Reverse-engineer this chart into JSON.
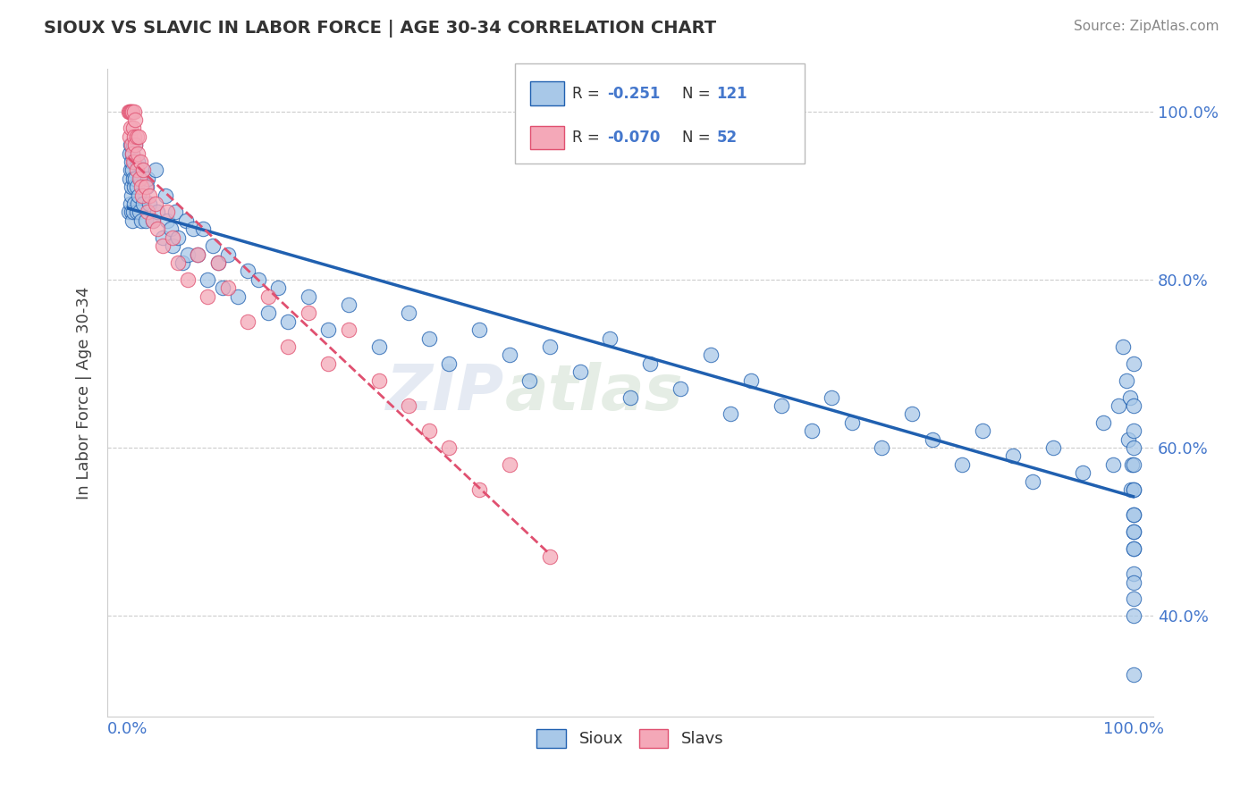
{
  "title": "SIOUX VS SLAVIC IN LABOR FORCE | AGE 30-34 CORRELATION CHART",
  "source": "Source: ZipAtlas.com",
  "ylabel": "In Labor Force | Age 30-34",
  "legend_r_values": [
    "-0.251",
    "-0.070"
  ],
  "legend_n_values": [
    "121",
    "52"
  ],
  "sioux_color": "#A8C8E8",
  "slavs_color": "#F4A8B8",
  "sioux_line_color": "#2060B0",
  "slavs_line_color": "#E05070",
  "background_color": "#FFFFFF",
  "grid_color": "#CCCCCC",
  "title_color": "#333333",
  "axis_label_color": "#444444",
  "tick_color": "#4477CC",
  "sioux_x": [
    0.001,
    0.002,
    0.002,
    0.003,
    0.003,
    0.003,
    0.004,
    0.004,
    0.004,
    0.004,
    0.005,
    0.005,
    0.005,
    0.006,
    0.006,
    0.006,
    0.007,
    0.007,
    0.007,
    0.008,
    0.008,
    0.009,
    0.009,
    0.01,
    0.01,
    0.011,
    0.012,
    0.013,
    0.014,
    0.015,
    0.016,
    0.018,
    0.019,
    0.02,
    0.022,
    0.025,
    0.028,
    0.03,
    0.035,
    0.038,
    0.04,
    0.043,
    0.045,
    0.048,
    0.05,
    0.055,
    0.058,
    0.06,
    0.065,
    0.07,
    0.075,
    0.08,
    0.085,
    0.09,
    0.095,
    0.1,
    0.11,
    0.12,
    0.13,
    0.14,
    0.15,
    0.16,
    0.18,
    0.2,
    0.22,
    0.25,
    0.28,
    0.3,
    0.32,
    0.35,
    0.38,
    0.4,
    0.42,
    0.45,
    0.48,
    0.5,
    0.52,
    0.55,
    0.58,
    0.6,
    0.62,
    0.65,
    0.68,
    0.7,
    0.72,
    0.75,
    0.78,
    0.8,
    0.83,
    0.85,
    0.88,
    0.9,
    0.92,
    0.95,
    0.97,
    0.98,
    0.985,
    0.99,
    0.993,
    0.995,
    0.997,
    0.998,
    0.999,
    1.0,
    1.0,
    1.0,
    1.0,
    1.0,
    1.0,
    1.0,
    1.0,
    1.0,
    1.0,
    1.0,
    1.0,
    1.0,
    1.0,
    1.0,
    1.0,
    1.0,
    1.0
  ],
  "sioux_y": [
    0.88,
    0.92,
    0.95,
    0.89,
    0.93,
    0.96,
    0.9,
    0.94,
    0.88,
    0.91,
    0.95,
    0.87,
    0.93,
    0.92,
    0.96,
    0.88,
    0.91,
    0.94,
    0.89,
    0.92,
    0.96,
    0.88,
    0.91,
    0.89,
    0.94,
    0.9,
    0.88,
    0.92,
    0.87,
    0.93,
    0.89,
    0.87,
    0.91,
    0.92,
    0.89,
    0.87,
    0.93,
    0.88,
    0.85,
    0.9,
    0.87,
    0.86,
    0.84,
    0.88,
    0.85,
    0.82,
    0.87,
    0.83,
    0.86,
    0.83,
    0.86,
    0.8,
    0.84,
    0.82,
    0.79,
    0.83,
    0.78,
    0.81,
    0.8,
    0.76,
    0.79,
    0.75,
    0.78,
    0.74,
    0.77,
    0.72,
    0.76,
    0.73,
    0.7,
    0.74,
    0.71,
    0.68,
    0.72,
    0.69,
    0.73,
    0.66,
    0.7,
    0.67,
    0.71,
    0.64,
    0.68,
    0.65,
    0.62,
    0.66,
    0.63,
    0.6,
    0.64,
    0.61,
    0.58,
    0.62,
    0.59,
    0.56,
    0.6,
    0.57,
    0.63,
    0.58,
    0.65,
    0.72,
    0.68,
    0.61,
    0.66,
    0.55,
    0.58,
    0.62,
    0.7,
    0.65,
    0.5,
    0.55,
    0.6,
    0.48,
    0.52,
    0.58,
    0.45,
    0.5,
    0.55,
    0.42,
    0.48,
    0.52,
    0.4,
    0.44,
    0.33
  ],
  "slavs_x": [
    0.001,
    0.002,
    0.002,
    0.003,
    0.003,
    0.004,
    0.004,
    0.005,
    0.005,
    0.006,
    0.006,
    0.007,
    0.007,
    0.008,
    0.008,
    0.009,
    0.009,
    0.01,
    0.011,
    0.012,
    0.013,
    0.014,
    0.015,
    0.016,
    0.018,
    0.02,
    0.022,
    0.025,
    0.028,
    0.03,
    0.035,
    0.04,
    0.045,
    0.05,
    0.06,
    0.07,
    0.08,
    0.09,
    0.1,
    0.12,
    0.14,
    0.16,
    0.18,
    0.2,
    0.22,
    0.25,
    0.28,
    0.3,
    0.32,
    0.35,
    0.38,
    0.42
  ],
  "slavs_y": [
    1.0,
    1.0,
    0.97,
    1.0,
    0.98,
    1.0,
    0.96,
    1.0,
    0.95,
    0.98,
    0.94,
    0.97,
    1.0,
    0.96,
    0.99,
    0.93,
    0.97,
    0.95,
    0.97,
    0.92,
    0.94,
    0.91,
    0.9,
    0.93,
    0.91,
    0.88,
    0.9,
    0.87,
    0.89,
    0.86,
    0.84,
    0.88,
    0.85,
    0.82,
    0.8,
    0.83,
    0.78,
    0.82,
    0.79,
    0.75,
    0.78,
    0.72,
    0.76,
    0.7,
    0.74,
    0.68,
    0.65,
    0.62,
    0.6,
    0.55,
    0.58,
    0.47
  ],
  "xlim": [
    -0.02,
    1.02
  ],
  "ylim": [
    0.28,
    1.05
  ],
  "watermark_zip": "ZIP",
  "watermark_atlas": "atlas"
}
